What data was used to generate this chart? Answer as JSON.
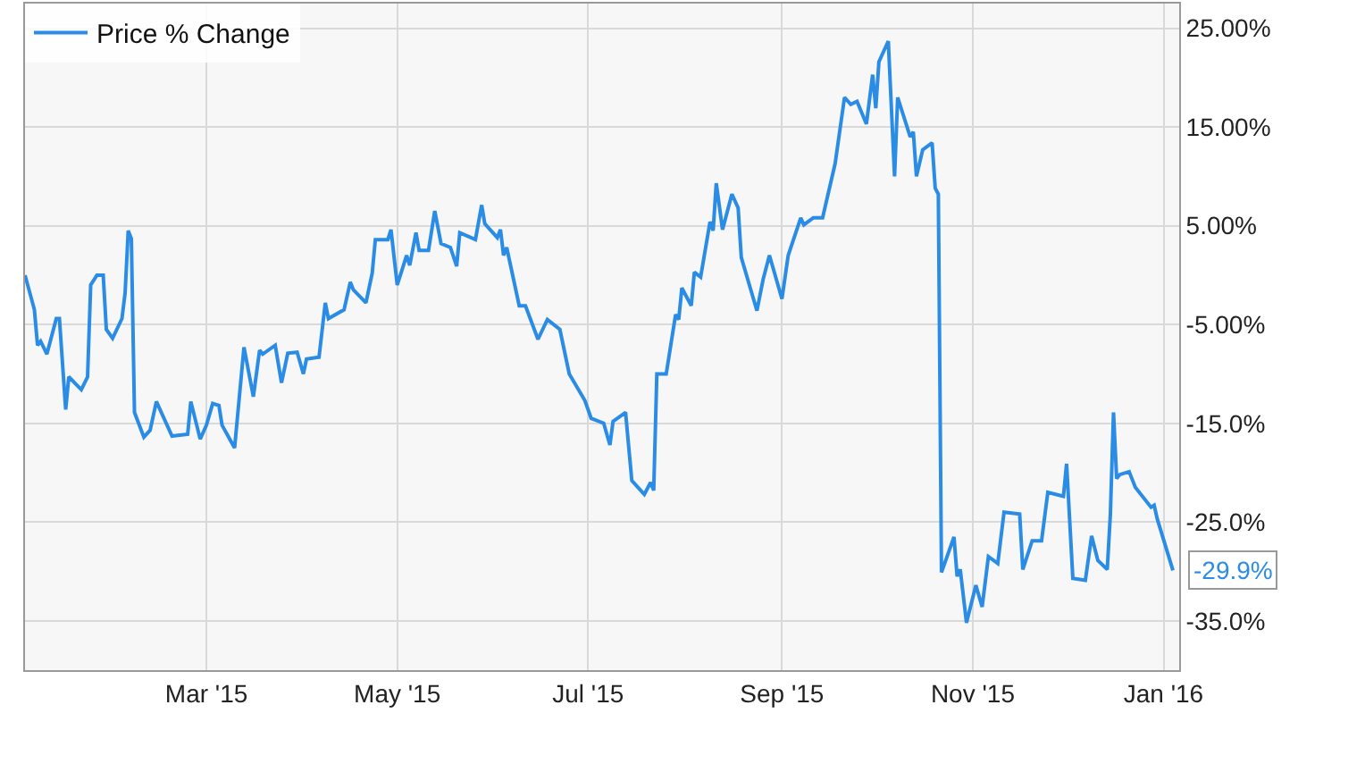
{
  "chart_data": {
    "type": "line",
    "legend": "top left",
    "grid": true,
    "marker": "none",
    "line_style": "solid",
    "x": [
      "2015-01-02",
      "2015-01-05",
      "2015-01-06",
      "2015-01-07",
      "2015-01-09",
      "2015-01-12",
      "2015-01-13",
      "2015-01-15",
      "2015-01-16",
      "2015-01-20",
      "2015-01-22",
      "2015-01-23",
      "2015-01-25",
      "2015-01-27",
      "2015-01-28",
      "2015-01-30",
      "2015-02-02",
      "2015-02-03",
      "2015-02-04",
      "2015-02-05",
      "2015-02-06",
      "2015-02-09",
      "2015-02-11",
      "2015-02-13",
      "2015-02-18",
      "2015-02-23",
      "2015-02-24",
      "2015-02-27",
      "2015-03-01",
      "2015-03-03",
      "2015-03-05",
      "2015-03-06",
      "2015-03-10",
      "2015-03-13",
      "2015-03-16",
      "2015-03-18",
      "2015-03-19",
      "2015-03-23",
      "2015-03-25",
      "2015-03-27",
      "2015-03-30",
      "2015-04-01",
      "2015-04-02",
      "2015-04-06",
      "2015-04-08",
      "2015-04-09",
      "2015-04-14",
      "2015-04-16",
      "2015-04-17",
      "2015-04-21",
      "2015-04-23",
      "2015-04-24",
      "2015-04-28",
      "2015-04-29",
      "2015-05-01",
      "2015-05-04",
      "2015-05-05",
      "2015-05-07",
      "2015-05-08",
      "2015-05-11",
      "2015-05-13",
      "2015-05-15",
      "2015-05-18",
      "2015-05-20",
      "2015-05-21",
      "2015-05-26",
      "2015-05-28",
      "2015-05-29",
      "2015-06-02",
      "2015-06-03",
      "2015-06-04",
      "2015-06-05",
      "2015-06-09",
      "2015-06-11",
      "2015-06-15",
      "2015-06-18",
      "2015-06-22",
      "2015-06-25",
      "2015-06-30",
      "2015-07-02",
      "2015-07-06",
      "2015-07-08",
      "2015-07-09",
      "2015-07-13",
      "2015-07-15",
      "2015-07-19",
      "2015-07-21",
      "2015-07-22",
      "2015-07-23",
      "2015-07-26",
      "2015-07-29",
      "2015-07-30",
      "2015-07-31",
      "2015-08-03",
      "2015-08-04",
      "2015-08-06",
      "2015-08-09",
      "2015-08-10",
      "2015-08-11",
      "2015-08-13",
      "2015-08-16",
      "2015-08-18",
      "2015-08-19",
      "2015-08-24",
      "2015-08-26",
      "2015-08-28",
      "2015-09-01",
      "2015-09-03",
      "2015-09-07",
      "2015-09-08",
      "2015-09-11",
      "2015-09-14",
      "2015-09-18",
      "2015-09-21",
      "2015-09-23",
      "2015-09-25",
      "2015-09-28",
      "2015-09-30",
      "2015-10-01",
      "2015-10-02",
      "2015-10-05",
      "2015-10-07",
      "2015-10-08",
      "2015-10-12",
      "2015-10-13",
      "2015-10-14",
      "2015-10-16",
      "2015-10-19",
      "2015-10-20",
      "2015-10-21",
      "2015-10-22",
      "2015-10-26",
      "2015-10-27",
      "2015-10-28",
      "2015-10-30",
      "2015-11-02",
      "2015-11-04",
      "2015-11-06",
      "2015-11-09",
      "2015-11-11",
      "2015-11-16",
      "2015-11-17",
      "2015-11-20",
      "2015-11-23",
      "2015-11-25",
      "2015-11-30",
      "2015-12-01",
      "2015-12-03",
      "2015-12-07",
      "2015-12-09",
      "2015-12-11",
      "2015-12-14",
      "2015-12-15",
      "2015-12-16",
      "2015-12-17",
      "2015-12-18",
      "2015-12-21",
      "2015-12-23",
      "2015-12-28",
      "2015-12-29",
      "2015-12-30",
      "2016-01-04"
    ],
    "series": [
      {
        "name": "Price % Change",
        "color": "#2b8ce6",
        "values": [
          0.0,
          -3.5,
          -7.1,
          -6.7,
          -8.0,
          -4.4,
          -4.4,
          -13.6,
          -10.3,
          -11.6,
          -10.3,
          -1.0,
          0.0,
          0.0,
          -5.5,
          -6.4,
          -4.4,
          -1.8,
          4.5,
          3.7,
          -13.9,
          -16.4,
          -15.7,
          -12.8,
          -16.3,
          -16.1,
          -12.8,
          -16.6,
          -15.2,
          -13.0,
          -13.2,
          -15.2,
          -17.5,
          -7.3,
          -12.3,
          -7.6,
          -8.0,
          -7.1,
          -10.9,
          -7.9,
          -7.8,
          -10.0,
          -8.5,
          -8.3,
          -2.8,
          -4.4,
          -3.5,
          -0.7,
          -1.5,
          -2.8,
          0.2,
          3.6,
          3.6,
          4.6,
          -1.0,
          2.0,
          1.0,
          4.3,
          2.5,
          2.5,
          6.5,
          3.2,
          2.8,
          0.9,
          4.3,
          3.6,
          7.1,
          5.2,
          3.8,
          4.6,
          2.0,
          2.8,
          -3.1,
          -3.1,
          -6.5,
          -4.5,
          -5.5,
          -10.0,
          -12.7,
          -14.5,
          -15.0,
          -17.2,
          -14.8,
          -13.9,
          -20.8,
          -22.2,
          -21.0,
          -21.8,
          -10.0,
          -10.0,
          -4.0,
          -4.5,
          -1.3,
          -3.1,
          0.3,
          -0.2,
          5.4,
          4.5,
          9.3,
          4.6,
          8.2,
          6.8,
          1.8,
          -3.6,
          -0.4,
          2.0,
          -2.4,
          2.0,
          5.8,
          5.1,
          5.8,
          5.8,
          11.3,
          18.0,
          17.3,
          17.6,
          15.3,
          20.3,
          16.9,
          21.6,
          23.7,
          10.0,
          18.0,
          14.0,
          14.5,
          10.0,
          12.7,
          13.4,
          8.8,
          8.2,
          -30.1,
          -26.5,
          -30.5,
          -29.8,
          -35.2,
          -31.4,
          -33.6,
          -28.5,
          -29.2,
          -24.0,
          -24.2,
          -29.8,
          -26.9,
          -26.9,
          -22.0,
          -22.4,
          -19.1,
          -30.7,
          -30.9,
          -26.4,
          -28.9,
          -29.8,
          -24.2,
          -13.9,
          -20.6,
          -20.2,
          -19.9,
          -21.5,
          -23.5,
          -23.3,
          -24.7,
          -29.9
        ]
      }
    ],
    "xlim": [
      "2015-01-02",
      "2016-01-06"
    ],
    "xticks": [
      {
        "value": "2015-03-01",
        "label": "Mar '15"
      },
      {
        "value": "2015-05-01",
        "label": "May '15"
      },
      {
        "value": "2015-07-01",
        "label": "Jul '15"
      },
      {
        "value": "2015-09-01",
        "label": "Sep '15"
      },
      {
        "value": "2015-11-01",
        "label": "Nov '15"
      },
      {
        "value": "2016-01-01",
        "label": "Jan '16"
      }
    ],
    "ylim": [
      -40,
      27.5
    ],
    "yticks": [
      {
        "value": 25,
        "label": "25.00%"
      },
      {
        "value": 15,
        "label": "15.00%"
      },
      {
        "value": 5,
        "label": "5.00%"
      },
      {
        "value": -5,
        "label": "-5.00%"
      },
      {
        "value": -15,
        "label": "-15.0%"
      },
      {
        "value": -25,
        "label": "-25.0%"
      },
      {
        "value": -35,
        "label": "-35.0%"
      }
    ],
    "annotations": [
      {
        "text": "-29.9%",
        "x": "2016-01-04",
        "y": -29.9
      }
    ]
  }
}
